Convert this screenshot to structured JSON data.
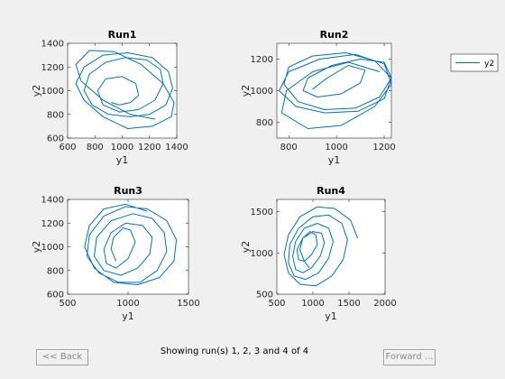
{
  "chart_data": [
    {
      "type": "line",
      "title": "Run1",
      "xlabel": "y1",
      "ylabel": "y2",
      "xlim": [
        600,
        1400
      ],
      "ylim": [
        600,
        1400
      ],
      "xticks": [
        600,
        800,
        1000,
        1200,
        1400
      ],
      "yticks": [
        600,
        800,
        1000,
        1200,
        1400
      ],
      "series": [
        {
          "x": [
            920,
            980,
            1060,
            1120,
            1100,
            1000,
            880,
            820,
            860,
            980,
            1120,
            1240,
            1300,
            1280,
            1180,
            1020,
            880,
            760,
            720,
            780,
            900,
            1060,
            1200,
            1320,
            1370,
            1340,
            1220,
            1040,
            860,
            720,
            660,
            720,
            860,
            1040,
            1220,
            1360,
            1380,
            1300,
            1140,
            940,
            760,
            660,
            700,
            860,
            1060,
            1240
          ],
          "y": [
            900,
            880,
            900,
            960,
            1060,
            1120,
            1100,
            1000,
            880,
            820,
            840,
            920,
            1060,
            1180,
            1260,
            1280,
            1240,
            1140,
            1000,
            880,
            800,
            780,
            800,
            880,
            1020,
            1160,
            1280,
            1320,
            1300,
            1200,
            1060,
            920,
            780,
            680,
            700,
            780,
            900,
            1060,
            1220,
            1330,
            1340,
            1220,
            1080,
            920,
            800,
            760
          ]
        }
      ]
    },
    {
      "type": "line",
      "title": "Run2",
      "xlabel": "y1",
      "ylabel": "y2",
      "xlim": [
        750,
        1230
      ],
      "ylim": [
        700,
        1300
      ],
      "xticks": [
        800,
        1000,
        1200
      ],
      "yticks": [
        800,
        1000,
        1200
      ],
      "series": [
        {
          "x": [
            900,
            960,
            1050,
            1120,
            1100,
            1020,
            920,
            860,
            880,
            980,
            1100,
            1200,
            1230,
            1180,
            1080,
            950,
            840,
            780,
            800,
            900,
            1040,
            1160,
            1230,
            1200,
            1090,
            950,
            830,
            760,
            800,
            930,
            1080,
            1200,
            1230,
            1160,
            1020,
            880,
            770,
            790,
            900,
            1050,
            1180
          ],
          "y": [
            1010,
            1080,
            1160,
            1130,
            1050,
            980,
            960,
            1000,
            1080,
            1160,
            1200,
            1180,
            1080,
            960,
            890,
            880,
            930,
            1040,
            1150,
            1220,
            1240,
            1190,
            1080,
            950,
            870,
            860,
            900,
            1000,
            1120,
            1200,
            1230,
            1170,
            1040,
            900,
            780,
            760,
            860,
            1000,
            1120,
            1180,
            1120
          ]
        }
      ]
    },
    {
      "type": "line",
      "title": "Run3",
      "xlabel": "y1",
      "ylabel": "y2",
      "xlim": [
        500,
        1500
      ],
      "ylim": [
        600,
        1400
      ],
      "xticks": [
        500,
        1000,
        1500
      ],
      "yticks": [
        600,
        800,
        1000,
        1200,
        1400
      ],
      "series": [
        {
          "x": [
            900,
            860,
            880,
            960,
            1020,
            1060,
            1000,
            900,
            820,
            800,
            860,
            980,
            1120,
            1200,
            1180,
            1080,
            940,
            800,
            720,
            740,
            860,
            1040,
            1200,
            1300,
            1320,
            1240,
            1100,
            920,
            760,
            660,
            680,
            800,
            980,
            1160,
            1320,
            1400,
            1380,
            1260,
            1080,
            880,
            720,
            640,
            680,
            800,
            980,
            1160
          ],
          "y": [
            880,
            980,
            1080,
            1160,
            1140,
            1040,
            900,
            820,
            860,
            980,
            1120,
            1200,
            1180,
            1080,
            940,
            820,
            760,
            800,
            920,
            1080,
            1220,
            1280,
            1240,
            1120,
            960,
            800,
            700,
            700,
            780,
            920,
            1100,
            1260,
            1340,
            1320,
            1220,
            1060,
            880,
            740,
            680,
            700,
            820,
            1000,
            1180,
            1320,
            1360,
            1300
          ]
        }
      ]
    },
    {
      "type": "line",
      "title": "Run4",
      "xlabel": "y1",
      "ylabel": "y2",
      "xlim": [
        500,
        2000
      ],
      "ylim": [
        500,
        1650
      ],
      "xticks": [
        500,
        1000,
        1500,
        2000
      ],
      "yticks": [
        500,
        1000,
        1500
      ],
      "series": [
        {
          "x": [
            950,
            880,
            820,
            860,
            960,
            1040,
            1060,
            980,
            880,
            800,
            780,
            860,
            1000,
            1120,
            1160,
            1100,
            980,
            860,
            760,
            720,
            760,
            880,
            1060,
            1220,
            1280,
            1220,
            1080,
            900,
            740,
            660,
            680,
            800,
            1000,
            1220,
            1400,
            1480,
            1420,
            1260,
            1040,
            820,
            660,
            600,
            660,
            820,
            1060,
            1300,
            1520,
            1620
          ],
          "y": [
            820,
            900,
            1040,
            1180,
            1260,
            1220,
            1100,
            980,
            900,
            920,
            1040,
            1180,
            1260,
            1240,
            1120,
            960,
            820,
            760,
            800,
            960,
            1140,
            1300,
            1360,
            1300,
            1140,
            940,
            760,
            680,
            720,
            880,
            1100,
            1300,
            1440,
            1460,
            1360,
            1160,
            920,
            720,
            600,
            620,
            760,
            980,
            1220,
            1440,
            1560,
            1540,
            1400,
            1180
          ]
        }
      ]
    }
  ],
  "legend": {
    "label": "y2",
    "color": "#0072bd",
    "placement": "top-right"
  },
  "line_color": "#0072bd",
  "status_text": "Showing run(s) 1, 2, 3 and 4 of 4",
  "buttons": {
    "back": "<< Back",
    "forward": "Forward ..."
  }
}
